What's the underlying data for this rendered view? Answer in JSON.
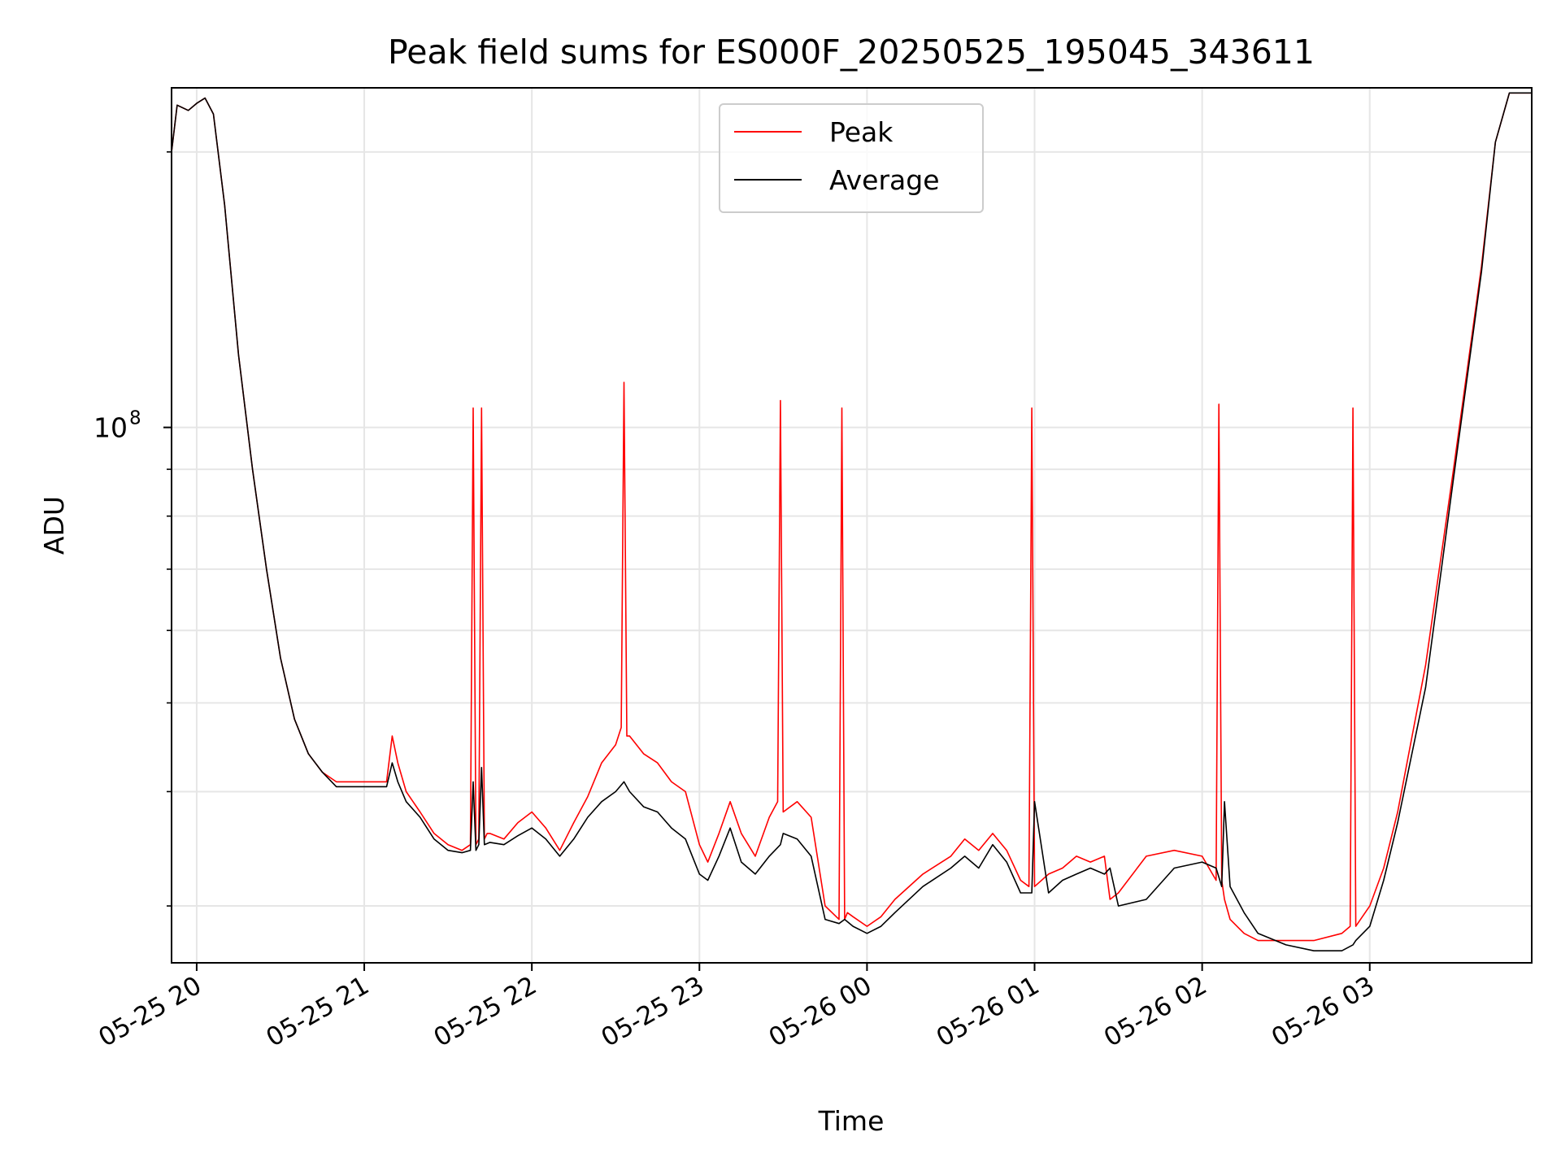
{
  "chart_data": {
    "type": "line",
    "title": "Peak field sums for ES000F_20250525_195045_343611",
    "xlabel": "Time",
    "ylabel": "ADU",
    "x_scale": "time",
    "y_scale": "log",
    "xlim": [
      "05-25 19:51",
      "05-26 03:58"
    ],
    "ylim": [
      26000000,
      235000000
    ],
    "x_ticks": [
      "05-25 20",
      "05-25 21",
      "05-25 22",
      "05-25 23",
      "05-26 00",
      "05-26 01",
      "05-26 02",
      "05-26 03"
    ],
    "y_tick_major_base": "10",
    "y_tick_major_exp": "8",
    "grid": true,
    "legend_position": "upper center",
    "series": [
      {
        "name": "Peak",
        "color": "#ff0000",
        "x": [
          "05-25 19:51",
          "05-25 19:53",
          "05-25 19:57",
          "05-25 20:00",
          "05-25 20:03",
          "05-25 20:06",
          "05-25 20:10",
          "05-25 20:15",
          "05-25 20:20",
          "05-25 20:25",
          "05-25 20:30",
          "05-25 20:35",
          "05-25 20:40",
          "05-25 20:45",
          "05-25 20:50",
          "05-25 21:00",
          "05-25 21:08",
          "05-25 21:10",
          "05-25 21:12",
          "05-25 21:15",
          "05-25 21:20",
          "05-25 21:25",
          "05-25 21:30",
          "05-25 21:35",
          "05-25 21:38",
          "05-25 21:39",
          "05-25 21:40",
          "05-25 21:41",
          "05-25 21:42",
          "05-25 21:43",
          "05-25 21:44",
          "05-25 21:45",
          "05-25 21:50",
          "05-25 21:55",
          "05-25 22:00",
          "05-25 22:05",
          "05-25 22:10",
          "05-25 22:15",
          "05-25 22:20",
          "05-25 22:25",
          "05-25 22:30",
          "05-25 22:32",
          "05-25 22:33",
          "05-25 22:34",
          "05-25 22:35",
          "05-25 22:40",
          "05-25 22:45",
          "05-25 22:50",
          "05-25 22:55",
          "05-25 23:00",
          "05-25 23:03",
          "05-25 23:07",
          "05-25 23:11",
          "05-25 23:15",
          "05-25 23:20",
          "05-25 23:25",
          "05-25 23:28",
          "05-25 23:29",
          "05-25 23:30",
          "05-25 23:35",
          "05-25 23:40",
          "05-25 23:45",
          "05-25 23:50",
          "05-25 23:51",
          "05-25 23:52",
          "05-25 23:53",
          "05-25 23:55",
          "05-26 00:00",
          "05-26 00:05",
          "05-26 00:10",
          "05-26 00:20",
          "05-26 00:30",
          "05-26 00:35",
          "05-26 00:40",
          "05-26 00:45",
          "05-26 00:50",
          "05-26 00:55",
          "05-26 00:58",
          "05-26 00:59",
          "05-26 01:00",
          "05-26 01:05",
          "05-26 01:10",
          "05-26 01:15",
          "05-26 01:20",
          "05-26 01:25",
          "05-26 01:27",
          "05-26 01:30",
          "05-26 01:40",
          "05-26 01:50",
          "05-26 02:00",
          "05-26 02:05",
          "05-26 02:06",
          "05-26 02:07",
          "05-26 02:08",
          "05-26 02:10",
          "05-26 02:15",
          "05-26 02:20",
          "05-26 02:30",
          "05-26 02:40",
          "05-26 02:50",
          "05-26 02:53",
          "05-26 02:54",
          "05-26 02:55",
          "05-26 03:00",
          "05-26 03:05",
          "05-26 03:10",
          "05-26 03:20",
          "05-26 03:30",
          "05-26 03:40",
          "05-26 03:45",
          "05-26 03:50",
          "05-26 03:55",
          "05-26 03:58"
        ],
        "values": [
          200000000,
          225000000,
          222000000,
          226000000,
          229000000,
          220000000,
          175000000,
          120000000,
          90000000,
          70000000,
          56000000,
          48000000,
          44000000,
          42000000,
          41000000,
          41000000,
          41000000,
          46000000,
          43000000,
          40000000,
          38000000,
          36000000,
          35000000,
          34500000,
          35000000,
          105000000,
          35000000,
          35500000,
          105000000,
          35500000,
          36000000,
          36000000,
          35500000,
          37000000,
          38000000,
          36500000,
          34500000,
          37000000,
          39500000,
          43000000,
          45000000,
          47000000,
          112000000,
          46000000,
          46000000,
          44000000,
          43000000,
          41000000,
          40000000,
          35000000,
          33500000,
          36000000,
          39000000,
          36000000,
          34000000,
          37500000,
          39000000,
          107000000,
          38000000,
          39000000,
          37500000,
          30000000,
          29000000,
          105000000,
          29000000,
          29500000,
          29200000,
          28500000,
          29200000,
          30500000,
          32500000,
          34000000,
          35500000,
          34500000,
          36000000,
          34500000,
          32000000,
          31500000,
          105000000,
          31500000,
          32500000,
          33000000,
          34000000,
          33500000,
          34000000,
          30500000,
          31000000,
          34000000,
          34500000,
          34000000,
          32000000,
          106000000,
          32000000,
          30500000,
          29000000,
          28000000,
          27500000,
          27500000,
          27500000,
          28000000,
          28500000,
          105000000,
          28500000,
          30000000,
          33000000,
          38000000,
          55000000,
          90000000,
          150000000,
          205000000,
          232000000,
          232000000,
          232000000
        ]
      },
      {
        "name": "Average",
        "color": "#000000",
        "x": [
          "05-25 19:51",
          "05-25 19:53",
          "05-25 19:57",
          "05-25 20:00",
          "05-25 20:03",
          "05-25 20:06",
          "05-25 20:10",
          "05-25 20:15",
          "05-25 20:20",
          "05-25 20:25",
          "05-25 20:30",
          "05-25 20:35",
          "05-25 20:40",
          "05-25 20:45",
          "05-25 20:50",
          "05-25 21:00",
          "05-25 21:08",
          "05-25 21:10",
          "05-25 21:12",
          "05-25 21:15",
          "05-25 21:20",
          "05-25 21:25",
          "05-25 21:30",
          "05-25 21:35",
          "05-25 21:38",
          "05-25 21:39",
          "05-25 21:40",
          "05-25 21:41",
          "05-25 21:42",
          "05-25 21:43",
          "05-25 21:45",
          "05-25 21:50",
          "05-25 21:55",
          "05-25 22:00",
          "05-25 22:05",
          "05-25 22:10",
          "05-25 22:15",
          "05-25 22:20",
          "05-25 22:25",
          "05-25 22:30",
          "05-25 22:33",
          "05-25 22:35",
          "05-25 22:40",
          "05-25 22:45",
          "05-25 22:50",
          "05-25 22:55",
          "05-25 23:00",
          "05-25 23:03",
          "05-25 23:07",
          "05-25 23:11",
          "05-25 23:15",
          "05-25 23:20",
          "05-25 23:25",
          "05-25 23:29",
          "05-25 23:30",
          "05-25 23:35",
          "05-25 23:40",
          "05-25 23:45",
          "05-25 23:50",
          "05-25 23:52",
          "05-25 23:55",
          "05-26 00:00",
          "05-26 00:05",
          "05-26 00:10",
          "05-26 00:20",
          "05-26 00:30",
          "05-26 00:35",
          "05-26 00:40",
          "05-26 00:45",
          "05-26 00:50",
          "05-26 00:55",
          "05-26 00:59",
          "05-26 01:00",
          "05-26 01:05",
          "05-26 01:10",
          "05-26 01:15",
          "05-26 01:20",
          "05-26 01:25",
          "05-26 01:27",
          "05-26 01:30",
          "05-26 01:40",
          "05-26 01:50",
          "05-26 02:00",
          "05-26 02:05",
          "05-26 02:07",
          "05-26 02:08",
          "05-26 02:10",
          "05-26 02:15",
          "05-26 02:20",
          "05-26 02:30",
          "05-26 02:40",
          "05-26 02:50",
          "05-26 02:54",
          "05-26 02:55",
          "05-26 03:00",
          "05-26 03:05",
          "05-26 03:10",
          "05-26 03:20",
          "05-26 03:30",
          "05-26 03:40",
          "05-26 03:45",
          "05-26 03:50",
          "05-26 03:55",
          "05-26 03:58"
        ],
        "values": [
          200000000,
          225000000,
          222000000,
          226000000,
          229000000,
          220000000,
          175000000,
          120000000,
          90000000,
          70000000,
          56000000,
          48000000,
          44000000,
          42000000,
          40500000,
          40500000,
          40500000,
          43000000,
          41000000,
          39000000,
          37500000,
          35500000,
          34500000,
          34300000,
          34500000,
          41000000,
          34500000,
          35000000,
          42500000,
          35000000,
          35200000,
          35000000,
          35800000,
          36500000,
          35500000,
          34000000,
          35500000,
          37500000,
          39000000,
          40000000,
          41000000,
          40000000,
          38500000,
          38000000,
          36500000,
          35500000,
          32500000,
          32000000,
          34000000,
          36500000,
          33500000,
          32500000,
          34000000,
          35000000,
          36000000,
          35500000,
          34000000,
          29000000,
          28700000,
          29000000,
          28500000,
          28000000,
          28500000,
          29500000,
          31500000,
          33000000,
          34000000,
          33000000,
          35000000,
          33500000,
          31000000,
          31000000,
          39000000,
          31000000,
          32000000,
          32500000,
          33000000,
          32500000,
          33000000,
          30000000,
          30500000,
          33000000,
          33500000,
          33000000,
          31500000,
          39000000,
          31500000,
          29500000,
          28000000,
          27200000,
          26800000,
          26800000,
          27200000,
          27500000,
          28500000,
          32000000,
          37000000,
          52000000,
          88000000,
          148000000,
          205000000,
          232000000,
          232000000,
          232000000
        ]
      }
    ]
  }
}
